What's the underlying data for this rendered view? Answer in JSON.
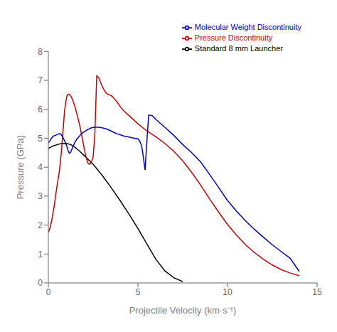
{
  "chart_data": {
    "type": "line",
    "xlabel": "Projectile Velocity (km·s⁻¹)",
    "ylabel": "Pressure (GPa)",
    "xlim": [
      0,
      15
    ],
    "ylim": [
      0,
      8
    ],
    "xticks": [
      0,
      5,
      10,
      15
    ],
    "yticks": [
      0,
      1,
      2,
      3,
      4,
      5,
      6,
      7,
      8
    ],
    "grid": false,
    "legend": "upper right",
    "series": [
      {
        "name": "Standard 8 mm Launcher",
        "color": "#000000",
        "x": [
          0.0,
          0.1,
          0.25,
          0.5,
          0.75,
          1.0,
          1.25,
          1.5,
          1.75,
          2.0,
          2.5,
          3.0,
          3.5,
          4.0,
          4.5,
          5.0,
          5.5,
          6.0,
          6.5,
          7.0,
          7.5
        ],
        "values": [
          4.65,
          4.68,
          4.73,
          4.78,
          4.82,
          4.82,
          4.78,
          4.68,
          4.55,
          4.4,
          4.1,
          3.72,
          3.3,
          2.85,
          2.38,
          1.88,
          1.35,
          0.82,
          0.42,
          0.18,
          0.05
        ]
      },
      {
        "name": "Pressure Discontinuity",
        "color": "#cc0000",
        "x": [
          0.0,
          0.05,
          0.1,
          0.15,
          0.2,
          0.3,
          0.35,
          0.4,
          0.45,
          0.5,
          0.55,
          0.6,
          0.65,
          0.7,
          0.75,
          0.8,
          0.85,
          0.9,
          0.95,
          1.0,
          1.05,
          1.1,
          1.15,
          1.2,
          1.3,
          1.4,
          1.5,
          1.6,
          1.7,
          1.8,
          1.9,
          2.0,
          2.1,
          2.2,
          2.3,
          2.4,
          2.5,
          2.6,
          2.7,
          2.8,
          2.9,
          3.0,
          3.1,
          3.2,
          3.3,
          3.4,
          3.5,
          3.6,
          3.7,
          3.8,
          4.0,
          4.2,
          4.5,
          5.0,
          5.5,
          6.0,
          6.5,
          7.0,
          7.5,
          8.0,
          8.5,
          9.0,
          9.5,
          10.0,
          10.5,
          11.0,
          11.5,
          12.0,
          12.5,
          13.0,
          13.5,
          14.0
        ],
        "values": [
          1.75,
          1.82,
          1.92,
          2.05,
          2.2,
          2.55,
          2.75,
          3.0,
          3.2,
          3.42,
          3.6,
          3.8,
          4.05,
          4.35,
          4.7,
          5.1,
          5.5,
          5.92,
          6.15,
          6.35,
          6.48,
          6.52,
          6.52,
          6.5,
          6.4,
          6.25,
          6.05,
          5.82,
          5.58,
          5.3,
          4.98,
          4.65,
          4.35,
          4.15,
          4.1,
          4.18,
          4.35,
          5.2,
          7.15,
          7.1,
          6.95,
          6.8,
          6.68,
          6.58,
          6.52,
          6.5,
          6.48,
          6.42,
          6.35,
          6.28,
          6.1,
          5.95,
          5.78,
          5.5,
          5.25,
          5.05,
          4.82,
          4.55,
          4.22,
          3.82,
          3.38,
          2.9,
          2.45,
          2.02,
          1.65,
          1.32,
          1.05,
          0.82,
          0.62,
          0.46,
          0.34,
          0.25
        ]
      },
      {
        "name": "Molecular Weight Discontinuity",
        "color": "#0000cc",
        "x": [
          0.0,
          0.05,
          0.1,
          0.15,
          0.2,
          0.3,
          0.4,
          0.5,
          0.6,
          0.65,
          0.7,
          0.75,
          0.8,
          0.9,
          1.0,
          1.05,
          1.1,
          1.15,
          1.2,
          1.25,
          1.3,
          1.4,
          1.5,
          1.6,
          1.7,
          1.8,
          1.9,
          2.0,
          2.2,
          2.4,
          2.6,
          2.8,
          3.0,
          3.2,
          3.4,
          3.6,
          3.8,
          4.0,
          4.2,
          4.5,
          4.7,
          5.0,
          5.1,
          5.2,
          5.25,
          5.3,
          5.35,
          5.4,
          5.5,
          5.6,
          5.8,
          6.0,
          6.5,
          7.0,
          7.5,
          8.0,
          8.5,
          9.0,
          9.5,
          10.0,
          10.5,
          11.0,
          11.5,
          12.0,
          12.5,
          13.0,
          13.5,
          14.0
        ],
        "values": [
          4.85,
          4.88,
          4.92,
          4.98,
          5.02,
          5.08,
          5.1,
          5.13,
          5.15,
          5.16,
          5.14,
          5.1,
          5.04,
          4.92,
          4.78,
          4.68,
          4.58,
          4.5,
          4.48,
          4.52,
          4.6,
          4.75,
          4.88,
          4.98,
          5.05,
          5.12,
          5.18,
          5.22,
          5.3,
          5.36,
          5.38,
          5.38,
          5.36,
          5.33,
          5.28,
          5.22,
          5.16,
          5.12,
          5.08,
          5.04,
          5.01,
          4.98,
          4.9,
          4.75,
          4.58,
          4.35,
          4.12,
          3.9,
          4.9,
          5.8,
          5.78,
          5.65,
          5.38,
          5.1,
          4.78,
          4.5,
          4.18,
          3.75,
          3.3,
          2.85,
          2.48,
          2.15,
          1.85,
          1.58,
          1.32,
          1.08,
          0.85,
          0.4
        ]
      }
    ]
  }
}
